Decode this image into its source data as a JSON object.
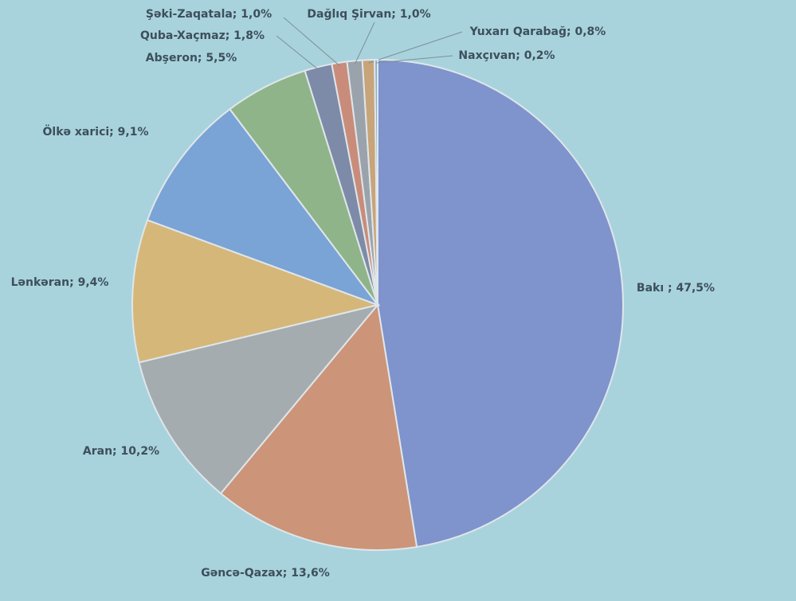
{
  "chart_data": {
    "type": "pie",
    "categories": [
      "Bakı ; 47,5%",
      "Gəncə-Qazax; 13,6%",
      "Aran; 10,2%",
      "Lənkəran; 9,4%",
      "Ölkə xarici; 9,1%",
      "Abşeron; 5,5%",
      "Quba-Xaçmaz; 1,8%",
      "Şəki-Zaqatala; 1,0%",
      "Dağlıq Şirvan; 1,0%",
      "Yuxarı Qarabağ; 0,8%",
      "Naxçıvan; 0,2%"
    ],
    "values": [
      47.5,
      13.6,
      10.2,
      9.4,
      9.1,
      5.5,
      1.8,
      1.0,
      1.0,
      0.8,
      0.2
    ],
    "colors": [
      "#7f93cc",
      "#cc9478",
      "#a5acb0",
      "#d6b77a",
      "#7aa3d6",
      "#8fb489",
      "#7d8aa8",
      "#c98c7a",
      "#9aa3ab",
      "#c8a47a",
      "#88aed0"
    ]
  }
}
